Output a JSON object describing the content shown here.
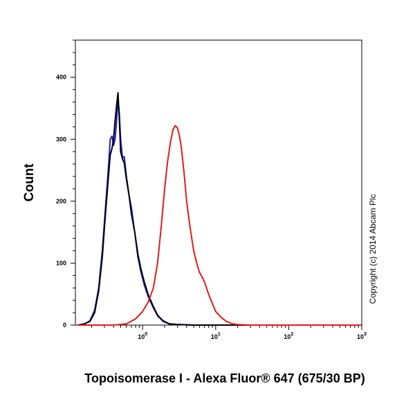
{
  "chart_data": {
    "type": "line",
    "title": "",
    "xlabel": "Topoisomerase I - Alexa Fluor® 647 (675/30 BP)",
    "ylabel": "Count",
    "x_scale": "log",
    "xlim": [
      0.12,
      1000
    ],
    "ylim": [
      0,
      460
    ],
    "x_ticks": [
      {
        "value": 1,
        "base": "10",
        "exp": "0"
      },
      {
        "value": 10,
        "base": "10",
        "exp": "1"
      },
      {
        "value": 100,
        "base": "10",
        "exp": "2"
      },
      {
        "value": 1000,
        "base": "10",
        "exp": "3"
      }
    ],
    "y_ticks": [
      0,
      100,
      200,
      300,
      400
    ],
    "grid": false,
    "annotations": [
      "Copyright (c) 2014 Abcam Plc"
    ],
    "series": [
      {
        "color": "#1f1fd6",
        "x": [
          0.13,
          0.16,
          0.19,
          0.22,
          0.25,
          0.28,
          0.31,
          0.34,
          0.36,
          0.38,
          0.4,
          0.42,
          0.44,
          0.46,
          0.48,
          0.5,
          0.53,
          0.56,
          0.6,
          0.65,
          0.7,
          0.78,
          0.86,
          0.95,
          1.05,
          1.2,
          1.4,
          1.6,
          1.9,
          2.3,
          3,
          5,
          10,
          100,
          1000
        ],
        "y": [
          0,
          2,
          7,
          24,
          60,
          120,
          190,
          255,
          300,
          305,
          290,
          300,
          330,
          365,
          340,
          300,
          270,
          272,
          240,
          210,
          190,
          150,
          110,
          85,
          65,
          45,
          28,
          15,
          6,
          2,
          1,
          0,
          0,
          0,
          0
        ]
      },
      {
        "color": "#000000",
        "x": [
          0.13,
          0.16,
          0.19,
          0.22,
          0.25,
          0.28,
          0.31,
          0.34,
          0.36,
          0.38,
          0.4,
          0.42,
          0.44,
          0.46,
          0.48,
          0.5,
          0.53,
          0.56,
          0.6,
          0.65,
          0.7,
          0.78,
          0.86,
          0.95,
          1.05,
          1.2,
          1.4,
          1.6,
          1.9,
          2.3,
          3,
          5,
          10,
          100,
          1000
        ],
        "y": [
          0,
          2,
          6,
          20,
          55,
          110,
          180,
          240,
          275,
          285,
          300,
          330,
          355,
          375,
          330,
          280,
          268,
          262,
          235,
          210,
          180,
          150,
          115,
          90,
          70,
          48,
          30,
          16,
          7,
          2,
          1,
          0,
          0,
          0,
          0
        ]
      },
      {
        "color": "#e41a1a",
        "x": [
          0.13,
          0.4,
          0.6,
          0.8,
          1.0,
          1.2,
          1.4,
          1.6,
          1.8,
          2.0,
          2.2,
          2.4,
          2.6,
          2.8,
          3.0,
          3.2,
          3.4,
          3.7,
          4.0,
          4.5,
          5.0,
          5.5,
          6.0,
          6.5,
          7.0,
          8.0,
          9.0,
          10,
          12,
          14,
          17,
          20,
          30,
          100,
          1000
        ],
        "y": [
          0,
          0,
          2,
          10,
          22,
          38,
          60,
          100,
          160,
          220,
          265,
          295,
          315,
          322,
          318,
          305,
          285,
          245,
          200,
          155,
          120,
          100,
          85,
          78,
          70,
          50,
          35,
          22,
          12,
          6,
          2,
          1,
          0,
          0,
          0
        ]
      }
    ]
  }
}
